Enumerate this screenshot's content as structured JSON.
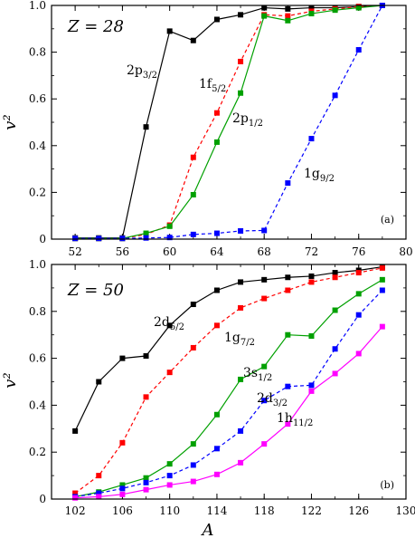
{
  "chart_data": [
    {
      "type": "line",
      "panel_label": "(a)",
      "z_label": "Z = 28",
      "ylabel": "v²",
      "xlabel": "",
      "xlim": [
        50,
        80
      ],
      "ylim": [
        0,
        1.0
      ],
      "xticks": [
        "52",
        "56",
        "60",
        "64",
        "68",
        "72",
        "76",
        "80"
      ],
      "yticks": [
        "0",
        "0.2",
        "0.4",
        "0.6",
        "0.8",
        "1.0"
      ],
      "series": [
        {
          "name": "2p3/2",
          "main": "2p",
          "sub": "3/2",
          "color": "#000000",
          "dashed": false,
          "points": [
            [
              52,
              0.005
            ],
            [
              54,
              0.005
            ],
            [
              56,
              0.005
            ],
            [
              58,
              0.48
            ],
            [
              60,
              0.89
            ],
            [
              62,
              0.85
            ],
            [
              64,
              0.94
            ],
            [
              66,
              0.96
            ],
            [
              68,
              0.99
            ],
            [
              70,
              0.985
            ],
            [
              72,
              0.99
            ],
            [
              74,
              0.99
            ],
            [
              76,
              0.995
            ],
            [
              78,
              1.0
            ]
          ]
        },
        {
          "name": "1f5/2",
          "main": "1f",
          "sub": "5/2",
          "color": "#ff0000",
          "dashed": true,
          "points": [
            [
              52,
              0.003
            ],
            [
              54,
              0.003
            ],
            [
              56,
              0.003
            ],
            [
              58,
              0.02
            ],
            [
              60,
              0.06
            ],
            [
              62,
              0.35
            ],
            [
              64,
              0.54
            ],
            [
              66,
              0.76
            ],
            [
              68,
              0.96
            ],
            [
              70,
              0.955
            ],
            [
              72,
              0.975
            ],
            [
              74,
              0.985
            ],
            [
              76,
              0.995
            ],
            [
              78,
              1.0
            ]
          ]
        },
        {
          "name": "2p1/2",
          "main": "2p",
          "sub": "1/2",
          "color": "#00a000",
          "dashed": false,
          "points": [
            [
              52,
              0.003
            ],
            [
              54,
              0.003
            ],
            [
              56,
              0.003
            ],
            [
              58,
              0.025
            ],
            [
              60,
              0.055
            ],
            [
              62,
              0.19
            ],
            [
              64,
              0.415
            ],
            [
              66,
              0.625
            ],
            [
              68,
              0.955
            ],
            [
              70,
              0.935
            ],
            [
              72,
              0.965
            ],
            [
              74,
              0.98
            ],
            [
              76,
              0.99
            ],
            [
              78,
              1.0
            ]
          ]
        },
        {
          "name": "1g9/2",
          "main": "1g",
          "sub": "9/2",
          "color": "#0000ff",
          "dashed": true,
          "points": [
            [
              52,
              0.003
            ],
            [
              54,
              0.003
            ],
            [
              56,
              0.003
            ],
            [
              58,
              0.005
            ],
            [
              60,
              0.007
            ],
            [
              62,
              0.02
            ],
            [
              64,
              0.025
            ],
            [
              66,
              0.035
            ],
            [
              68,
              0.037
            ],
            [
              70,
              0.24
            ],
            [
              72,
              0.43
            ],
            [
              74,
              0.615
            ],
            [
              76,
              0.81
            ],
            [
              78,
              1.0
            ]
          ]
        }
      ]
    },
    {
      "type": "line",
      "panel_label": "(b)",
      "z_label": "Z = 50",
      "ylabel": "v²",
      "xlabel": "A",
      "xlim": [
        100,
        130
      ],
      "ylim": [
        0,
        1.0
      ],
      "xticks": [
        "102",
        "106",
        "110",
        "114",
        "118",
        "122",
        "126",
        "130"
      ],
      "yticks": [
        "0",
        "0.2",
        "0.4",
        "0.6",
        "0.8",
        "1.0"
      ],
      "series": [
        {
          "name": "2d5/2",
          "main": "2d",
          "sub": "5/2",
          "color": "#000000",
          "dashed": false,
          "points": [
            [
              102,
              0.29
            ],
            [
              104,
              0.5
            ],
            [
              106,
              0.6
            ],
            [
              108,
              0.61
            ],
            [
              110,
              0.74
            ],
            [
              112,
              0.83
            ],
            [
              114,
              0.89
            ],
            [
              116,
              0.925
            ],
            [
              118,
              0.935
            ],
            [
              120,
              0.945
            ],
            [
              122,
              0.95
            ],
            [
              124,
              0.965
            ],
            [
              126,
              0.975
            ],
            [
              128,
              0.99
            ]
          ]
        },
        {
          "name": "1g7/2",
          "main": "1g",
          "sub": "7/2",
          "color": "#ff0000",
          "dashed": true,
          "points": [
            [
              102,
              0.025
            ],
            [
              104,
              0.1
            ],
            [
              106,
              0.24
            ],
            [
              108,
              0.435
            ],
            [
              110,
              0.54
            ],
            [
              112,
              0.645
            ],
            [
              114,
              0.74
            ],
            [
              116,
              0.815
            ],
            [
              118,
              0.855
            ],
            [
              120,
              0.89
            ],
            [
              122,
              0.925
            ],
            [
              124,
              0.945
            ],
            [
              126,
              0.965
            ],
            [
              128,
              0.985
            ]
          ]
        },
        {
          "name": "3s1/2",
          "main": "3s",
          "sub": "1/2",
          "color": "#00a000",
          "dashed": false,
          "points": [
            [
              102,
              0.01
            ],
            [
              104,
              0.03
            ],
            [
              106,
              0.06
            ],
            [
              108,
              0.09
            ],
            [
              110,
              0.15
            ],
            [
              112,
              0.235
            ],
            [
              114,
              0.36
            ],
            [
              116,
              0.51
            ],
            [
              118,
              0.565
            ],
            [
              120,
              0.7
            ],
            [
              122,
              0.695
            ],
            [
              124,
              0.805
            ],
            [
              126,
              0.875
            ],
            [
              128,
              0.935
            ]
          ]
        },
        {
          "name": "2d3/2",
          "main": "2d",
          "sub": "3/2",
          "color": "#0000ff",
          "dashed": true,
          "points": [
            [
              102,
              0.01
            ],
            [
              104,
              0.025
            ],
            [
              106,
              0.045
            ],
            [
              108,
              0.07
            ],
            [
              110,
              0.1
            ],
            [
              112,
              0.145
            ],
            [
              114,
              0.215
            ],
            [
              116,
              0.29
            ],
            [
              118,
              0.42
            ],
            [
              120,
              0.48
            ],
            [
              122,
              0.485
            ],
            [
              124,
              0.64
            ],
            [
              126,
              0.785
            ],
            [
              128,
              0.89
            ]
          ]
        },
        {
          "name": "1h11/2",
          "main": "1h",
          "sub": "11/2",
          "color": "#ff00ff",
          "dashed": false,
          "points": [
            [
              102,
              0.005
            ],
            [
              104,
              0.01
            ],
            [
              106,
              0.02
            ],
            [
              108,
              0.04
            ],
            [
              110,
              0.06
            ],
            [
              112,
              0.075
            ],
            [
              114,
              0.105
            ],
            [
              116,
              0.155
            ],
            [
              118,
              0.235
            ],
            [
              120,
              0.32
            ],
            [
              122,
              0.46
            ],
            [
              124,
              0.535
            ],
            [
              126,
              0.62
            ],
            [
              128,
              0.735
            ]
          ]
        }
      ]
    }
  ]
}
